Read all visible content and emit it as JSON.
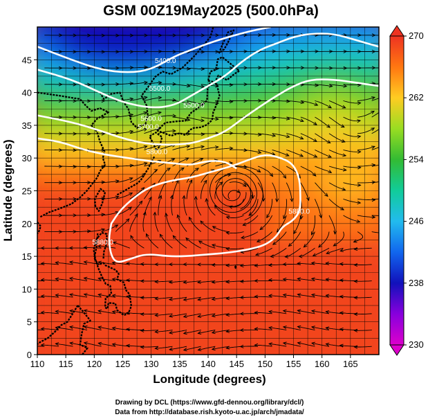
{
  "title": "GSM 00Z19May2025 (500.0hPa)",
  "xlabel": "Longitude (degrees)",
  "ylabel": "Latitude  (degrees)",
  "credits": [
    "Drawing by DCL (https://www.gfd-dennou.org/library/dcl/)",
    "Data from http://database.rish.kyoto-u.ac.jp/arch/jmadata/"
  ],
  "colors": {
    "frame": "#000000",
    "contour": "#ffffff",
    "coast": "#000000",
    "streamline": "#000000"
  },
  "chart_data": {
    "type": "heatmap",
    "variable": "temperature (K) with geopotential height contours and wind streamlines",
    "xlim": [
      110,
      170
    ],
    "ylim": [
      0,
      50
    ],
    "xticks": [
      "110",
      "115",
      "120",
      "125",
      "130",
      "135",
      "140",
      "145",
      "150",
      "155",
      "160",
      "165"
    ],
    "yticks": [
      "0",
      "5",
      "10",
      "15",
      "20",
      "25",
      "30",
      "35",
      "40",
      "45"
    ],
    "colorbar": {
      "min": 230,
      "max": 270,
      "tick_labels": [
        "230",
        "238",
        "246",
        "254",
        "262",
        "270"
      ],
      "stops": [
        {
          "v": 230,
          "c": "#dd00cc"
        },
        {
          "v": 234,
          "c": "#8800dd"
        },
        {
          "v": 238,
          "c": "#1111bb"
        },
        {
          "v": 242,
          "c": "#1166ee"
        },
        {
          "v": 246,
          "c": "#22bbee"
        },
        {
          "v": 250,
          "c": "#11cc99"
        },
        {
          "v": 254,
          "c": "#33bb33"
        },
        {
          "v": 258,
          "c": "#99dd22"
        },
        {
          "v": 262,
          "c": "#ffcc22"
        },
        {
          "v": 266,
          "c": "#ff7711"
        },
        {
          "v": 270,
          "c": "#ee3322"
        }
      ]
    },
    "contours": [
      {
        "label": "5400.0",
        "points": [
          [
            110,
            47
          ],
          [
            116,
            45
          ],
          [
            121,
            43.5
          ],
          [
            126,
            43
          ],
          [
            130,
            43.5
          ],
          [
            134,
            45.5
          ],
          [
            137,
            46.5
          ],
          [
            140,
            47.5
          ],
          [
            144,
            48.6
          ],
          [
            148,
            49.5
          ],
          [
            151,
            50
          ]
        ]
      },
      {
        "label": "5500.0",
        "points": [
          [
            110,
            43.5
          ],
          [
            116,
            42
          ],
          [
            121,
            40
          ],
          [
            125,
            38.5
          ],
          [
            130,
            37.6
          ],
          [
            134,
            38
          ],
          [
            137,
            39.5
          ],
          [
            140,
            41
          ],
          [
            143,
            42.5
          ],
          [
            146,
            44.8
          ],
          [
            149,
            46.5
          ],
          [
            152,
            47.5
          ],
          [
            155,
            48.5
          ],
          [
            158,
            49
          ],
          [
            162,
            49
          ],
          [
            166,
            48
          ],
          [
            170,
            47
          ]
        ]
      },
      {
        "label": "5700.0",
        "points": [
          [
            110,
            36.5
          ],
          [
            116,
            35.5
          ],
          [
            121,
            34.2
          ],
          [
            125,
            33
          ],
          [
            129,
            32.2
          ],
          [
            133,
            32
          ],
          [
            137,
            32.2
          ],
          [
            140,
            33
          ],
          [
            143,
            34
          ],
          [
            146,
            36
          ],
          [
            149,
            37.8
          ],
          [
            152,
            39.5
          ],
          [
            155,
            41
          ],
          [
            158,
            42
          ],
          [
            162,
            42
          ],
          [
            166,
            41.5
          ],
          [
            170,
            41
          ]
        ]
      },
      {
        "label": "5800.0",
        "points": [
          [
            110,
            33
          ],
          [
            114,
            32.5
          ],
          [
            118,
            31.3
          ],
          [
            122,
            30.5
          ],
          [
            126,
            30
          ],
          [
            130,
            29.5
          ],
          [
            134,
            29.2
          ],
          [
            137,
            28.9
          ],
          [
            140,
            29.6
          ],
          [
            143,
            29.5
          ],
          [
            145,
            28.4
          ]
        ]
      },
      {
        "label": "5880.0",
        "points": [
          [
            123,
            20
          ],
          [
            124.5,
            22
          ],
          [
            127,
            24
          ],
          [
            129.5,
            25.5
          ],
          [
            133,
            26.5
          ],
          [
            137,
            27
          ],
          [
            141,
            28
          ],
          [
            144,
            28.7
          ],
          [
            147,
            29.7
          ],
          [
            150,
            30.6
          ],
          [
            153,
            30
          ],
          [
            155,
            29
          ],
          [
            156,
            27
          ],
          [
            156.2,
            25
          ],
          [
            156.2,
            22
          ],
          [
            155,
            20.5
          ],
          [
            153,
            19.5
          ],
          [
            152,
            18
          ],
          [
            150,
            16.7
          ],
          [
            147,
            16
          ],
          [
            143,
            15.5
          ],
          [
            140,
            15.3
          ],
          [
            136,
            15
          ],
          [
            133,
            15
          ],
          [
            129,
            15.4
          ],
          [
            126,
            14.5
          ],
          [
            124,
            14
          ],
          [
            123,
            15
          ],
          [
            122.5,
            17.5
          ],
          [
            123,
            20
          ]
        ],
        "closed": true
      }
    ],
    "contour_labels": [
      {
        "text": "5400.0",
        "x": 132.5,
        "y": 44.5
      },
      {
        "text": "5500.0",
        "x": 131.5,
        "y": 40.3
      },
      {
        "text": "5500.0",
        "x": 137.5,
        "y": 37.7
      },
      {
        "text": "5600.0",
        "x": 130.0,
        "y": 35.7
      },
      {
        "text": "5700.0",
        "x": 129.5,
        "y": 34.4
      },
      {
        "text": "5800.0",
        "x": 131.0,
        "y": 30.6
      },
      {
        "text": "5880.0",
        "x": 121.5,
        "y": 16.8
      },
      {
        "text": "5880.0",
        "x": 156.0,
        "y": 21.5
      }
    ],
    "high_center": {
      "lon": 144.5,
      "lat": 24.8
    }
  }
}
